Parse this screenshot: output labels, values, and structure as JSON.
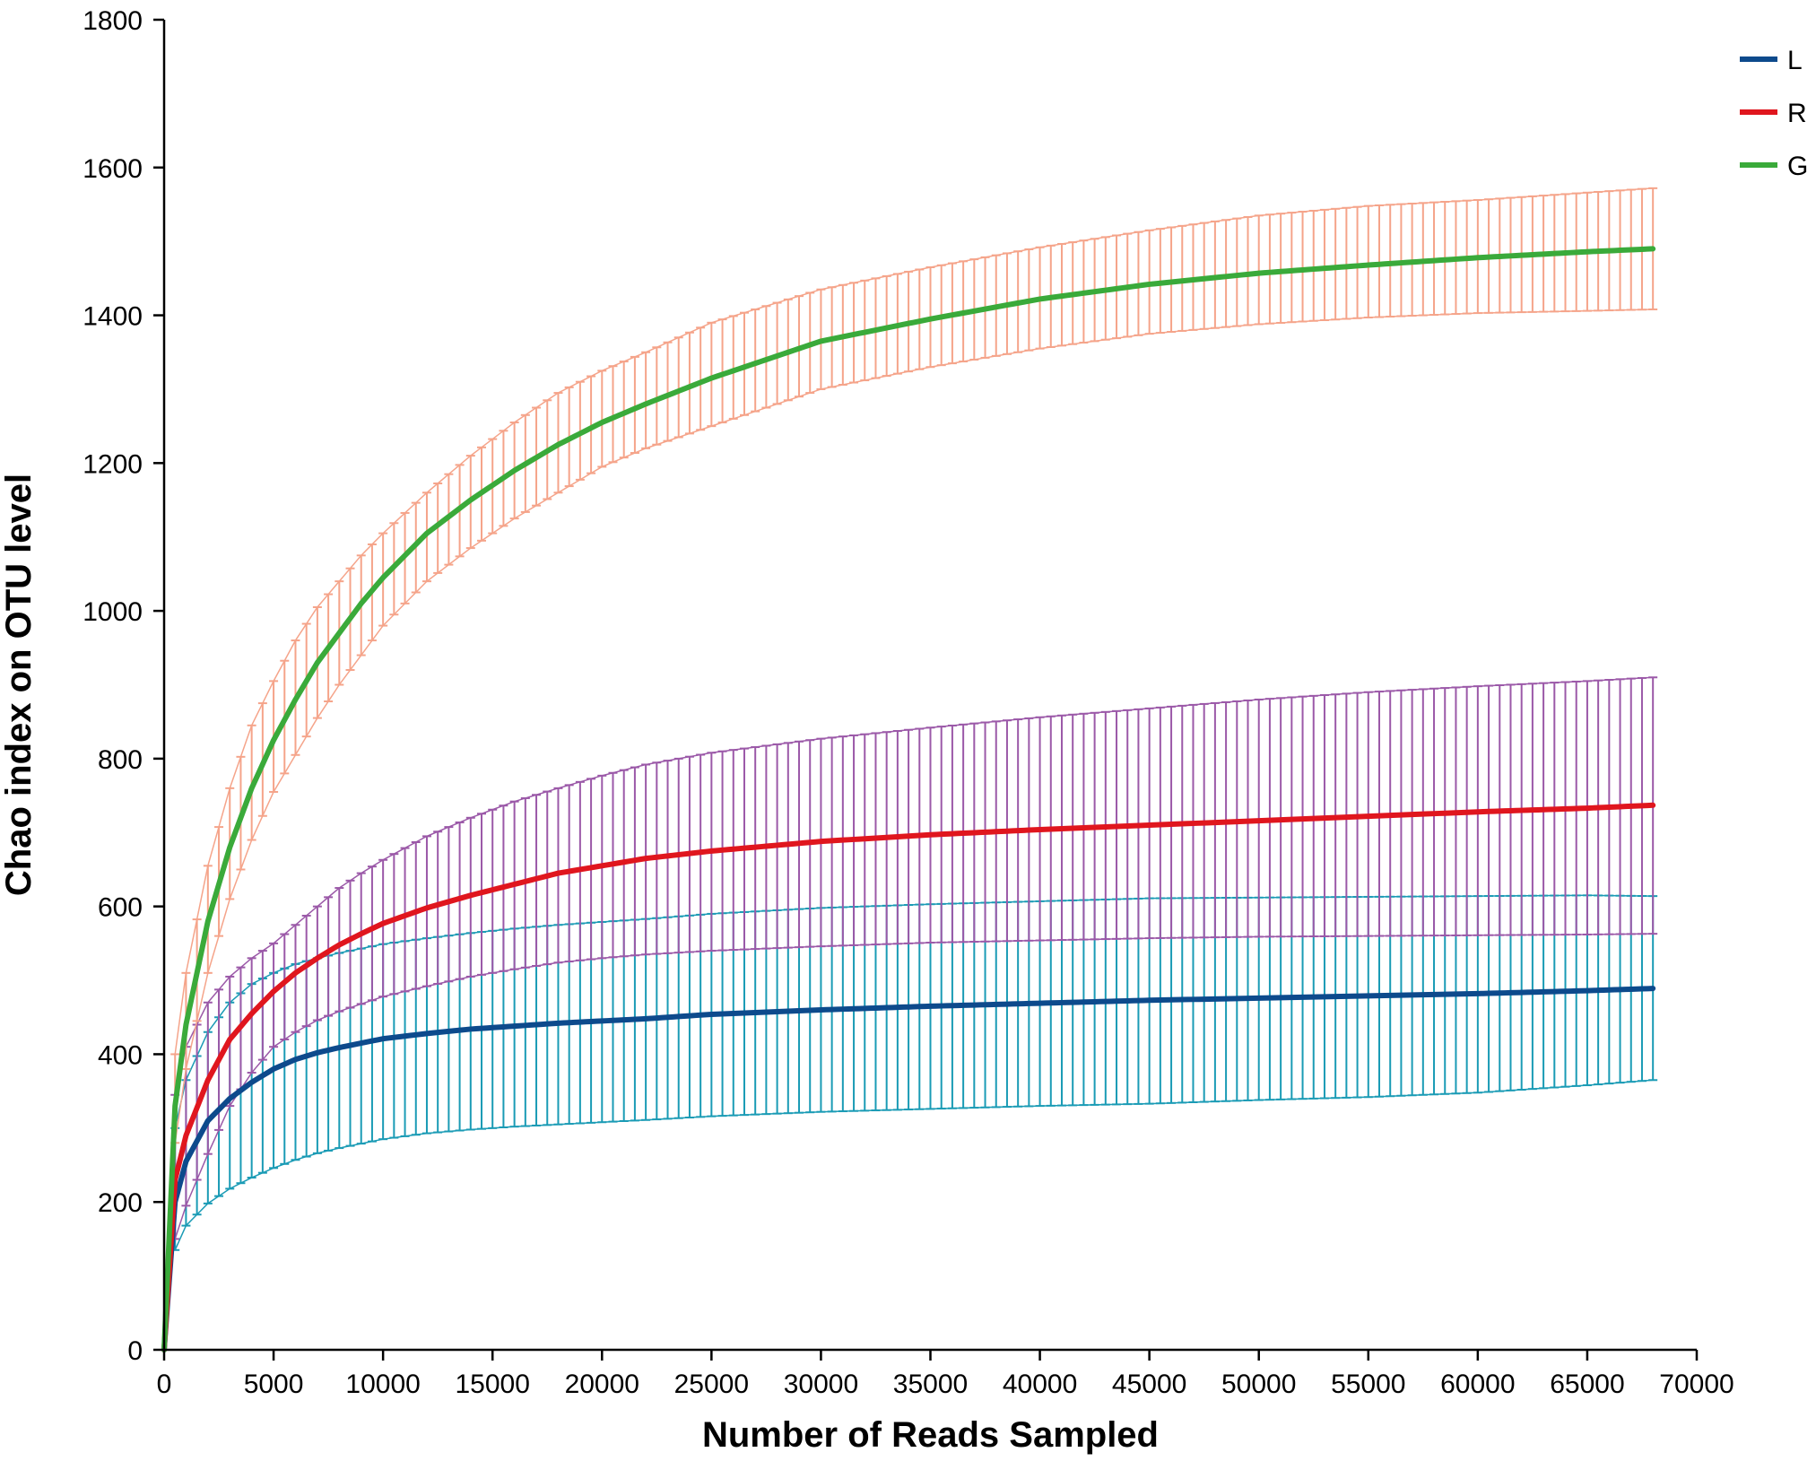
{
  "chart_data": {
    "type": "line",
    "title": "",
    "xlabel": "Number of Reads Sampled",
    "ylabel": "Chao index on OTU level",
    "xlim": [
      0,
      70000
    ],
    "ylim": [
      0,
      1800
    ],
    "xticks": [
      0,
      5000,
      10000,
      15000,
      20000,
      25000,
      30000,
      35000,
      40000,
      45000,
      50000,
      55000,
      60000,
      65000,
      70000
    ],
    "yticks": [
      0,
      200,
      400,
      600,
      800,
      1000,
      1200,
      1400,
      1600,
      1800
    ],
    "grid": false,
    "legend_position": "top-right",
    "x": [
      0,
      500,
      1000,
      2000,
      3000,
      4000,
      5000,
      6000,
      7000,
      8000,
      9000,
      10000,
      12000,
      14000,
      16000,
      18000,
      20000,
      22000,
      25000,
      30000,
      35000,
      40000,
      45000,
      50000,
      55000,
      60000,
      65000,
      68000
    ],
    "series": [
      {
        "name": "L",
        "color": "#0d4a8c",
        "error_color": "#1a9bb5",
        "values": [
          0,
          200,
          255,
          310,
          340,
          362,
          380,
          393,
          402,
          409,
          415,
          421,
          428,
          434,
          438,
          442,
          445,
          448,
          454,
          460,
          465,
          469,
          473,
          476,
          479,
          482,
          486,
          489
        ],
        "upper": [
          0,
          300,
          365,
          430,
          470,
          495,
          510,
          522,
          530,
          537,
          543,
          549,
          557,
          564,
          570,
          575,
          579,
          583,
          590,
          598,
          603,
          607,
          611,
          612,
          613,
          614,
          615,
          614
        ],
        "lower": [
          0,
          135,
          168,
          198,
          218,
          233,
          246,
          257,
          266,
          273,
          279,
          285,
          293,
          298,
          302,
          305,
          308,
          311,
          316,
          322,
          326,
          330,
          333,
          338,
          342,
          348,
          358,
          365
        ]
      },
      {
        "name": "R",
        "color": "#e0161e",
        "error_color": "#9b59a8",
        "values": [
          0,
          230,
          290,
          365,
          420,
          455,
          485,
          510,
          530,
          548,
          563,
          577,
          598,
          615,
          630,
          645,
          655,
          665,
          675,
          688,
          697,
          704,
          710,
          716,
          722,
          728,
          733,
          737
        ],
        "upper": [
          0,
          345,
          410,
          470,
          505,
          530,
          550,
          575,
          600,
          625,
          645,
          663,
          695,
          720,
          742,
          760,
          777,
          792,
          808,
          827,
          842,
          856,
          868,
          880,
          890,
          898,
          905,
          910
        ],
        "lower": [
          0,
          150,
          195,
          265,
          330,
          375,
          410,
          430,
          446,
          458,
          468,
          478,
          492,
          505,
          515,
          524,
          530,
          535,
          540,
          546,
          551,
          554,
          557,
          559,
          560,
          561,
          562,
          563
        ]
      },
      {
        "name": "G",
        "color": "#3aaa3a",
        "error_color": "#f5a48a",
        "values": [
          0,
          330,
          440,
          580,
          680,
          760,
          825,
          880,
          930,
          970,
          1010,
          1045,
          1105,
          1150,
          1190,
          1225,
          1255,
          1280,
          1315,
          1365,
          1395,
          1422,
          1442,
          1457,
          1468,
          1478,
          1486,
          1490
        ],
        "upper": [
          0,
          400,
          510,
          655,
          760,
          845,
          905,
          960,
          1005,
          1040,
          1075,
          1105,
          1160,
          1210,
          1255,
          1295,
          1325,
          1350,
          1390,
          1435,
          1465,
          1492,
          1515,
          1535,
          1548,
          1556,
          1566,
          1572
        ],
        "lower": [
          0,
          280,
          380,
          510,
          610,
          690,
          755,
          805,
          855,
          900,
          940,
          980,
          1040,
          1085,
          1125,
          1160,
          1195,
          1220,
          1250,
          1300,
          1330,
          1355,
          1375,
          1388,
          1397,
          1403,
          1406,
          1408
        ]
      }
    ]
  }
}
